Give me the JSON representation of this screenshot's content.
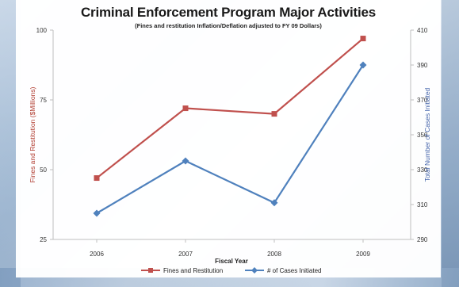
{
  "chart_data": {
    "type": "line",
    "title": "Criminal Enforcement Program Major Activities",
    "subtitle": "(Fines and restitution Inflation/Deflation adjusted to FY 09 Dollars)",
    "xlabel": "Fiscal Year",
    "categories": [
      "2006",
      "2007",
      "2008",
      "2009"
    ],
    "y_left": {
      "label": "Fines and Restitution ($Millions)",
      "ylim": [
        25,
        100
      ],
      "ticks": [
        "25",
        "50",
        "75",
        "100"
      ]
    },
    "y_right": {
      "label": "Total Number of Cases Initiated",
      "ylim": [
        290,
        410
      ],
      "ticks": [
        "290",
        "310",
        "330",
        "350",
        "370",
        "390",
        "410"
      ]
    },
    "series": [
      {
        "name": "Fines and Restitution",
        "axis": "left",
        "color": "#c0504d",
        "marker": "square",
        "values": [
          47,
          72,
          70,
          97
        ]
      },
      {
        "name": "# of Cases Initiated",
        "axis": "right",
        "color": "#4f81bd",
        "marker": "diamond",
        "values": [
          305,
          335,
          311,
          390
        ]
      }
    ],
    "grid": false,
    "legend_position": "bottom"
  }
}
